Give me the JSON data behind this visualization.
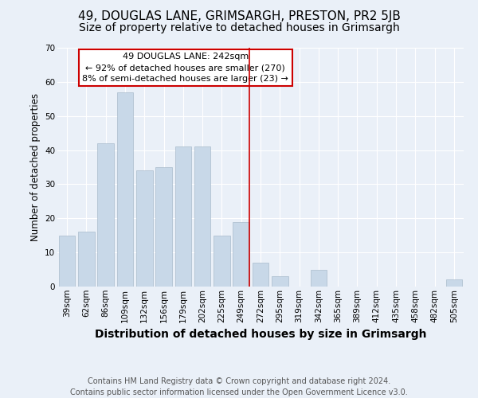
{
  "title": "49, DOUGLAS LANE, GRIMSARGH, PRESTON, PR2 5JB",
  "subtitle": "Size of property relative to detached houses in Grimsargh",
  "xlabel": "Distribution of detached houses by size in Grimsargh",
  "ylabel": "Number of detached properties",
  "categories": [
    "39sqm",
    "62sqm",
    "86sqm",
    "109sqm",
    "132sqm",
    "156sqm",
    "179sqm",
    "202sqm",
    "225sqm",
    "249sqm",
    "272sqm",
    "295sqm",
    "319sqm",
    "342sqm",
    "365sqm",
    "389sqm",
    "412sqm",
    "435sqm",
    "458sqm",
    "482sqm",
    "505sqm"
  ],
  "values": [
    15,
    16,
    42,
    57,
    34,
    35,
    41,
    41,
    15,
    19,
    7,
    3,
    0,
    5,
    0,
    0,
    0,
    0,
    0,
    0,
    2
  ],
  "bar_color": "#c8d8e8",
  "bar_edge_color": "#aabccc",
  "property_line_x": 9.42,
  "annotation_text": "49 DOUGLAS LANE: 242sqm\n← 92% of detached houses are smaller (270)\n8% of semi-detached houses are larger (23) →",
  "annotation_box_color": "#ffffff",
  "annotation_box_edge": "#cc0000",
  "line_color": "#cc0000",
  "background_color": "#eaf0f8",
  "grid_color": "#ffffff",
  "ylim": [
    0,
    70
  ],
  "yticks": [
    0,
    10,
    20,
    30,
    40,
    50,
    60,
    70
  ],
  "footer": "Contains HM Land Registry data © Crown copyright and database right 2024.\nContains public sector information licensed under the Open Government Licence v3.0.",
  "title_fontsize": 11,
  "subtitle_fontsize": 10,
  "xlabel_fontsize": 10,
  "ylabel_fontsize": 8.5,
  "tick_fontsize": 7.5,
  "footer_fontsize": 7
}
